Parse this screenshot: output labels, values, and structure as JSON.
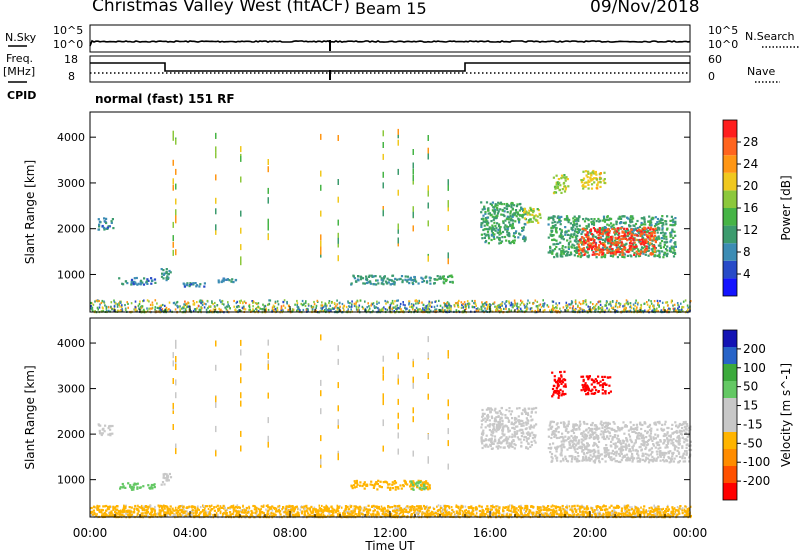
{
  "header": {
    "station": "Christmas Valley West (fitACF)",
    "beam": "Beam 15",
    "date": "09/Nov/2018"
  },
  "panels": {
    "noise": {
      "left_label": "N.Sky",
      "right_label": "N.Search",
      "left_ticks": [
        "10^5",
        "10^0"
      ],
      "right_ticks": [
        "10^5",
        "10^0"
      ]
    },
    "freq": {
      "left_label_1": "Freq.",
      "left_label_2": "[MHz]",
      "right_label": "Nave",
      "left_ticks": [
        "18",
        "8"
      ],
      "right_ticks": [
        "60",
        "0"
      ]
    },
    "cpid": {
      "label": "CPID",
      "text": "normal (fast) 151 RF"
    }
  },
  "colors": {
    "power": [
      "#1414ff",
      "#284bc8",
      "#3c8cb4",
      "#3c9b6e",
      "#46b446",
      "#8cc83c",
      "#f0c81e",
      "#ff9614",
      "#ff641e",
      "#ff1e1e"
    ],
    "velocity": [
      "#ff0000",
      "#ff5000",
      "#ff8c00",
      "#ffb400",
      "#c8c8c8",
      "#c8c8c8",
      "#64c864",
      "#3caa3c",
      "#2864c8",
      "#1414b4"
    ]
  },
  "chart_data": [
    {
      "type": "heatmap",
      "name": "power",
      "ylabel": "Slant Range [km]",
      "yticks": [
        "4000",
        "3000",
        "2000",
        "1000"
      ],
      "ylim": [
        180,
        4550
      ],
      "xlim": [
        "00:00",
        "24:00"
      ],
      "colorbar_label": "Power [dB]",
      "colorbar_ticks": [
        "28",
        "24",
        "20",
        "16",
        "12",
        "8",
        "4"
      ],
      "colorbar_range": [
        0,
        32
      ],
      "features": [
        {
          "x": [
            0.3,
            0.9
          ],
          "y": [
            2000,
            2250
          ],
          "value": 8
        },
        {
          "x": [
            1.1,
            2.6
          ],
          "y": [
            800,
            950
          ],
          "value": 8
        },
        {
          "x": [
            2.8,
            3.2
          ],
          "y": [
            900,
            1150
          ],
          "value": 10
        },
        {
          "x": [
            3.7,
            4.6
          ],
          "y": [
            750,
            850
          ],
          "value": 8
        },
        {
          "x": [
            5.1,
            5.8
          ],
          "y": [
            850,
            950
          ],
          "value": 8
        },
        {
          "x": [
            10.4,
            13.6
          ],
          "y": [
            800,
            1000
          ],
          "value": 10
        },
        {
          "x": [
            13.7,
            14.5
          ],
          "y": [
            800,
            1000
          ],
          "value": 12
        },
        {
          "x": [
            15.6,
            17.4
          ],
          "y": [
            1700,
            2600
          ],
          "value": 12
        },
        {
          "x": [
            17.3,
            18.0
          ],
          "y": [
            2150,
            2500
          ],
          "value": 18
        },
        {
          "x": [
            18.5,
            19.1
          ],
          "y": [
            2800,
            3200
          ],
          "value": 18
        },
        {
          "x": [
            19.6,
            20.6
          ],
          "y": [
            2900,
            3300
          ],
          "value": 20
        },
        {
          "x": [
            18.3,
            23.4
          ],
          "y": [
            1400,
            2300
          ],
          "value": 12
        },
        {
          "x": [
            19.5,
            22.6
          ],
          "y": [
            1450,
            2050
          ],
          "value": 28
        }
      ]
    },
    {
      "type": "heatmap",
      "name": "velocity",
      "ylabel": "Slant Range [km]",
      "yticks": [
        "4000",
        "3000",
        "2000",
        "1000"
      ],
      "ylim": [
        180,
        4550
      ],
      "xlim": [
        "00:00",
        "24:00"
      ],
      "xticks": [
        "00:00",
        "04:00",
        "08:00",
        "12:00",
        "16:00",
        "20:00",
        "00:00"
      ],
      "xlabel": "Time UT",
      "colorbar_label": "Velocity [m s^-1]",
      "colorbar_ticks": [
        "200",
        "100",
        "50",
        "15",
        "-15",
        "-50",
        "-100",
        "-200"
      ],
      "colorbar_range": [
        -250,
        250
      ],
      "features": [
        {
          "x": [
            0.3,
            0.9
          ],
          "y": [
            2000,
            2250
          ],
          "value": 0
        },
        {
          "x": [
            1.1,
            2.6
          ],
          "y": [
            800,
            950
          ],
          "value": 60
        },
        {
          "x": [
            2.8,
            3.2
          ],
          "y": [
            900,
            1150
          ],
          "value": 0
        },
        {
          "x": [
            10.4,
            13.6
          ],
          "y": [
            800,
            1000
          ],
          "value": -60
        },
        {
          "x": [
            12.8,
            13.4
          ],
          "y": [
            800,
            1000
          ],
          "value": 60
        },
        {
          "x": [
            15.6,
            17.8
          ],
          "y": [
            1700,
            2600
          ],
          "value": 0
        },
        {
          "x": [
            18.4,
            19.0
          ],
          "y": [
            2800,
            3400
          ],
          "value": -220
        },
        {
          "x": [
            19.6,
            20.8
          ],
          "y": [
            2900,
            3300
          ],
          "value": -220
        },
        {
          "x": [
            18.3,
            24.0
          ],
          "y": [
            1400,
            2300
          ],
          "value": 0
        },
        {
          "x": [
            0.0,
            24.0
          ],
          "y": [
            200,
            450
          ],
          "value": -70
        }
      ]
    }
  ]
}
